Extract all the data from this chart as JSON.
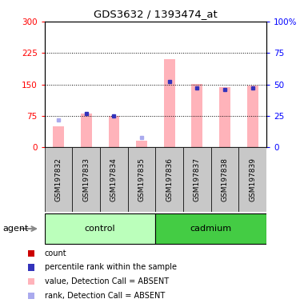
{
  "title": "GDS3632 / 1393474_at",
  "samples": [
    "GSM197832",
    "GSM197833",
    "GSM197834",
    "GSM197835",
    "GSM197836",
    "GSM197837",
    "GSM197838",
    "GSM197839"
  ],
  "present_mask": [
    false,
    true,
    true,
    false,
    true,
    true,
    true,
    true
  ],
  "absent_mask": [
    true,
    false,
    false,
    true,
    false,
    false,
    false,
    false
  ],
  "pink_vals": [
    50,
    80,
    75,
    15,
    210,
    152,
    143,
    148
  ],
  "rank_vals": [
    22,
    27,
    25,
    8,
    52,
    47,
    46,
    47
  ],
  "ylim_left": [
    0,
    300
  ],
  "ylim_right": [
    0,
    100
  ],
  "yticks_left": [
    0,
    75,
    150,
    225,
    300
  ],
  "yticks_right": [
    0,
    25,
    50,
    75,
    100
  ],
  "ytick_labels_right": [
    "0",
    "25",
    "50",
    "75",
    "100%"
  ],
  "color_pink": "#ffb3ba",
  "color_blue_present": "#3333bb",
  "color_blue_absent": "#aaaaee",
  "color_red": "#cc0000",
  "color_sample_bg": "#c8c8c8",
  "color_control_bg": "#bbffbb",
  "color_cadmium_bg": "#44cc44",
  "color_plot_bg": "#ffffff",
  "legend_labels": [
    "count",
    "percentile rank within the sample",
    "value, Detection Call = ABSENT",
    "rank, Detection Call = ABSENT"
  ],
  "legend_colors": [
    "#cc0000",
    "#3333bb",
    "#ffb3ba",
    "#aaaaee"
  ],
  "agent_label": "agent",
  "group1_label": "control",
  "group2_label": "cadmium",
  "n_control": 4,
  "n_cadmium": 4
}
